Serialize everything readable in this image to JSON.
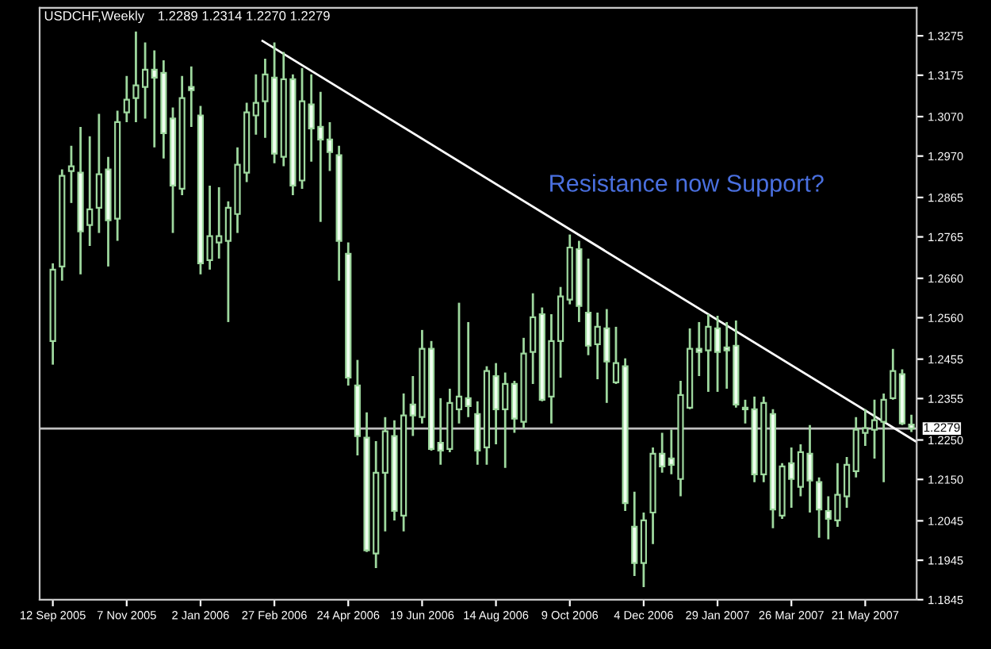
{
  "chart_data": {
    "type": "candlestick",
    "title": "USDCHF,Weekly",
    "subtitle": "1.2289 1.2314 1.2270 1.2279",
    "annotations": [
      "Resistance now Support?"
    ],
    "x": [
      "2005-09-12",
      "2005-09-19",
      "2005-09-26",
      "2005-10-03",
      "2005-10-10",
      "2005-10-17",
      "2005-10-24",
      "2005-10-31",
      "2005-11-07",
      "2005-11-14",
      "2005-11-21",
      "2005-11-28",
      "2005-12-05",
      "2005-12-12",
      "2005-12-19",
      "2005-12-26",
      "2006-01-02",
      "2006-01-09",
      "2006-01-16",
      "2006-01-23",
      "2006-01-30",
      "2006-02-06",
      "2006-02-13",
      "2006-02-20",
      "2006-02-27",
      "2006-03-06",
      "2006-03-13",
      "2006-03-20",
      "2006-03-27",
      "2006-04-03",
      "2006-04-10",
      "2006-04-17",
      "2006-04-24",
      "2006-05-01",
      "2006-05-08",
      "2006-05-15",
      "2006-05-22",
      "2006-05-29",
      "2006-06-05",
      "2006-06-12",
      "2006-06-19",
      "2006-06-26",
      "2006-07-03",
      "2006-07-10",
      "2006-07-17",
      "2006-07-24",
      "2006-07-31",
      "2006-08-07",
      "2006-08-14",
      "2006-08-21",
      "2006-08-28",
      "2006-09-04",
      "2006-09-11",
      "2006-09-18",
      "2006-09-25",
      "2006-10-02",
      "2006-10-09",
      "2006-10-16",
      "2006-10-23",
      "2006-10-30",
      "2006-11-06",
      "2006-11-13",
      "2006-11-20",
      "2006-11-27",
      "2006-12-04",
      "2006-12-11",
      "2006-12-18",
      "2006-12-25",
      "2007-01-01",
      "2007-01-08",
      "2007-01-15",
      "2007-01-22",
      "2007-01-29",
      "2007-02-05",
      "2007-02-12",
      "2007-02-19",
      "2007-02-26",
      "2007-03-05",
      "2007-03-12",
      "2007-03-19",
      "2007-03-26",
      "2007-04-02",
      "2007-04-09",
      "2007-04-16",
      "2007-04-23",
      "2007-04-30",
      "2007-05-07",
      "2007-05-14",
      "2007-05-21",
      "2007-05-28",
      "2007-06-04",
      "2007-06-11",
      "2007-06-18",
      "2007-06-25"
    ],
    "series": [
      {
        "color": "#9ed89e",
        "ohlc": [
          [
            1.2501,
            1.2698,
            1.2441,
            1.2682
          ],
          [
            1.269,
            1.2936,
            1.2654,
            1.292
          ],
          [
            1.2932,
            1.2996,
            1.2851,
            1.2944
          ],
          [
            1.2928,
            1.3044,
            1.267,
            1.2779
          ],
          [
            1.2795,
            1.302,
            1.2742,
            1.2835
          ],
          [
            1.2839,
            1.3077,
            1.2775,
            1.2924
          ],
          [
            1.2936,
            1.2968,
            1.269,
            1.2807
          ],
          [
            1.2811,
            1.3085,
            1.2755,
            1.3056
          ],
          [
            1.3081,
            1.3173,
            1.3056,
            1.3113
          ],
          [
            1.3117,
            1.3286,
            1.3056,
            1.3149
          ],
          [
            1.3145,
            1.3258,
            1.3065,
            1.3189
          ],
          [
            1.3189,
            1.3238,
            1.2992,
            1.3169
          ],
          [
            1.3181,
            1.3213,
            1.2964,
            1.3028
          ],
          [
            1.3065,
            1.3093,
            1.2775,
            1.2895
          ],
          [
            1.2887,
            1.3173,
            1.2871,
            1.3117
          ],
          [
            1.3145,
            1.3197,
            1.3044,
            1.3137
          ],
          [
            1.3073,
            1.3097,
            1.267,
            1.2698
          ],
          [
            1.2706,
            1.2895,
            1.2682,
            1.2767
          ],
          [
            1.2751,
            1.2891,
            1.271,
            1.2767
          ],
          [
            1.2755,
            1.2855,
            1.2549,
            1.2839
          ],
          [
            1.2823,
            1.2992,
            1.2775,
            1.2948
          ],
          [
            1.2928,
            1.3105,
            1.2904,
            1.3081
          ],
          [
            1.3073,
            1.3177,
            1.3024,
            1.3105
          ],
          [
            1.3109,
            1.3217,
            1.3016,
            1.3177
          ],
          [
            1.3169,
            1.3258,
            1.2952,
            1.2976
          ],
          [
            1.2968,
            1.3234,
            1.2944,
            1.3165
          ],
          [
            1.3165,
            1.3177,
            1.2871,
            1.2895
          ],
          [
            1.2908,
            1.3193,
            1.2887,
            1.3109
          ],
          [
            1.3101,
            1.3177,
            1.2956,
            1.304
          ],
          [
            1.3044,
            1.3133,
            1.2803,
            1.3012
          ],
          [
            1.3012,
            1.3056,
            1.2932,
            1.298
          ],
          [
            1.2972,
            1.2996,
            1.2654,
            1.2755
          ],
          [
            1.2722,
            1.2751,
            1.2388,
            1.2408
          ],
          [
            1.2388,
            1.2453,
            1.2211,
            1.226
          ],
          [
            1.2256,
            1.232,
            1.1966,
            1.197
          ],
          [
            1.1962,
            1.2247,
            1.1925,
            1.2167
          ],
          [
            1.2167,
            1.2308,
            1.2018,
            1.2272
          ],
          [
            1.226,
            1.23,
            1.2046,
            1.207
          ],
          [
            1.2058,
            1.2368,
            1.2018,
            1.2312
          ],
          [
            1.234,
            1.2412,
            1.226,
            1.2312
          ],
          [
            1.2308,
            1.2529,
            1.2292,
            1.2481
          ],
          [
            1.2481,
            1.2501,
            1.2223,
            1.2227
          ],
          [
            1.2243,
            1.2356,
            1.2187,
            1.2223
          ],
          [
            1.2227,
            1.238,
            1.2219,
            1.2344
          ],
          [
            1.2328,
            1.2598,
            1.2292,
            1.236
          ],
          [
            1.2356,
            1.2549,
            1.2308,
            1.2336
          ],
          [
            1.2316,
            1.2348,
            1.2187,
            1.2223
          ],
          [
            1.2231,
            1.2437,
            1.2187,
            1.2425
          ],
          [
            1.2412,
            1.2445,
            1.2239,
            1.2328
          ],
          [
            1.2328,
            1.2421,
            1.2179,
            1.2392
          ],
          [
            1.2392,
            1.24,
            1.2268,
            1.2304
          ],
          [
            1.2296,
            1.2509,
            1.228,
            1.2469
          ],
          [
            1.2473,
            1.2622,
            1.2392,
            1.2561
          ],
          [
            1.2569,
            1.2586,
            1.2348,
            1.2352
          ],
          [
            1.236,
            1.2569,
            1.2292,
            1.2501
          ],
          [
            1.2501,
            1.2638,
            1.2408,
            1.2614
          ],
          [
            1.2606,
            1.2771,
            1.2594,
            1.2738
          ],
          [
            1.2734,
            1.2755,
            1.2549,
            1.259
          ],
          [
            1.2573,
            1.271,
            1.2465,
            1.2489
          ],
          [
            1.2493,
            1.2573,
            1.2404,
            1.2537
          ],
          [
            1.2533,
            1.2582,
            1.2344,
            1.2449
          ],
          [
            1.2396,
            1.2537,
            1.2392,
            1.2445
          ],
          [
            1.2437,
            1.2457,
            1.207,
            1.209
          ],
          [
            1.203,
            1.2119,
            1.1905,
            1.1938
          ],
          [
            1.1938,
            1.2066,
            1.1877,
            1.2046
          ],
          [
            1.2066,
            1.2231,
            1.1986,
            1.2215
          ],
          [
            1.2215,
            1.2268,
            1.2167,
            1.2183
          ],
          [
            1.2203,
            1.2276,
            1.2163,
            1.2187
          ],
          [
            1.2151,
            1.24,
            1.2107,
            1.2364
          ],
          [
            1.2332,
            1.2533,
            1.2328,
            1.2481
          ],
          [
            1.2481,
            1.2549,
            1.2412,
            1.2473
          ],
          [
            1.2477,
            1.2569,
            1.2372,
            1.2537
          ],
          [
            1.2533,
            1.2565,
            1.2372,
            1.2473
          ],
          [
            1.2485,
            1.2549,
            1.238,
            1.2477
          ],
          [
            1.2489,
            1.2553,
            1.2332,
            1.234
          ],
          [
            1.2332,
            1.2352,
            1.2292,
            1.2328
          ],
          [
            1.2328,
            1.236,
            1.2143,
            1.2163
          ],
          [
            1.2163,
            1.236,
            1.2143,
            1.2344
          ],
          [
            1.2316,
            1.2328,
            1.2026,
            1.2074
          ],
          [
            1.2058,
            1.2191,
            1.205,
            1.2183
          ],
          [
            1.2191,
            1.2231,
            1.2078,
            1.2151
          ],
          [
            1.2131,
            1.2239,
            1.2107,
            1.2219
          ],
          [
            1.2215,
            1.2288,
            1.2066,
            1.2147
          ],
          [
            1.2143,
            1.2155,
            1.2002,
            1.2074
          ],
          [
            1.207,
            1.2107,
            1.1998,
            1.205
          ],
          [
            1.2046,
            1.2191,
            1.203,
            1.2111
          ],
          [
            1.2107,
            1.2207,
            1.2078,
            1.2187
          ],
          [
            1.2171,
            1.2308,
            1.2155,
            1.2276
          ],
          [
            1.2268,
            1.2328,
            1.2235,
            1.228
          ],
          [
            1.2276,
            1.2352,
            1.2203,
            1.23
          ],
          [
            1.2296,
            1.2368,
            1.2143,
            1.2352
          ],
          [
            1.2356,
            1.2481,
            1.2352,
            1.2425
          ],
          [
            1.2417,
            1.2429,
            1.2288,
            1.2292
          ],
          [
            1.2289,
            1.2314,
            1.227,
            1.2279
          ]
        ]
      },
      {
        "type": "line",
        "color": "#ffffff",
        "x": [
          "2006-02-18",
          "2007-06-28"
        ],
        "values": [
          1.3262,
          1.2247
        ]
      }
    ],
    "ref_lines": [
      {
        "axis": "y",
        "value": 1.2279,
        "label": "1.2279",
        "color": "#c0c0c0"
      }
    ],
    "xlim": [
      "2005-09-02",
      "2007-06-29"
    ],
    "xticks": [
      {
        "value": "2005-09-12",
        "label": "12 Sep 2005"
      },
      {
        "value": "2005-11-07",
        "label": "7 Nov 2005"
      },
      {
        "value": "2006-01-02",
        "label": "2 Jan 2006"
      },
      {
        "value": "2006-02-27",
        "label": "27 Feb 2006"
      },
      {
        "value": "2006-04-24",
        "label": "24 Apr 2006"
      },
      {
        "value": "2006-06-19",
        "label": "19 Jun 2006"
      },
      {
        "value": "2006-08-14",
        "label": "14 Aug 2006"
      },
      {
        "value": "2006-10-09",
        "label": "9 Oct 2006"
      },
      {
        "value": "2006-12-04",
        "label": "4 Dec 2006"
      },
      {
        "value": "2007-01-29",
        "label": "29 Jan 2007"
      },
      {
        "value": "2007-03-26",
        "label": "26 Mar 2007"
      },
      {
        "value": "2007-05-21",
        "label": "21 May 2007"
      }
    ],
    "ylim": [
      1.1845,
      1.3346
    ],
    "yticks": [
      1.3275,
      1.3175,
      {
        "value": 1.307,
        "label": "1.3070"
      },
      {
        "value": 1.297,
        "label": "1.2970"
      },
      1.2865,
      1.2765,
      {
        "value": 1.266,
        "label": "1.2660"
      },
      {
        "value": 1.256,
        "label": "1.2560"
      },
      1.2455,
      1.2355,
      {
        "value": 1.225,
        "label": "1.2250"
      },
      {
        "value": 1.215,
        "label": "1.2150"
      },
      1.2045,
      1.1945,
      1.1845
    ],
    "grid": false,
    "legend": false
  }
}
